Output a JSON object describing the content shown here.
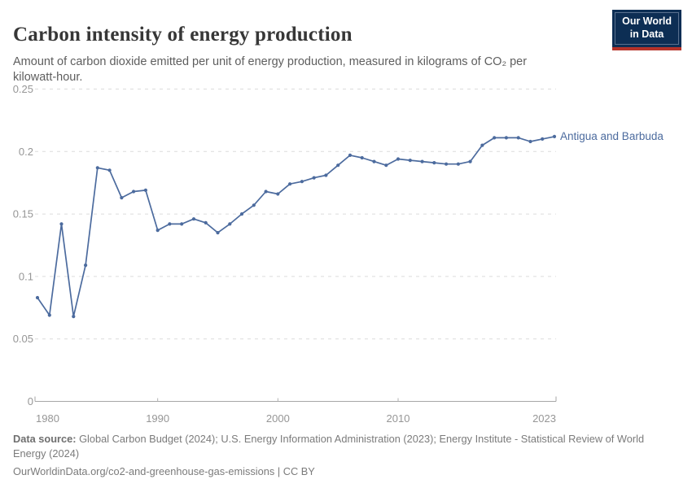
{
  "header": {
    "title": "Carbon intensity of energy production",
    "subtitle": "Amount of carbon dioxide emitted per unit of energy production, measured in kilograms of CO₂ per kilowatt-hour.",
    "logo": {
      "line1": "Our World",
      "line2": "in Data"
    }
  },
  "footer": {
    "source_label": "Data source:",
    "source_text": " Global Carbon Budget (2024); U.S. Energy Information Administration (2023); Energy Institute - Statistical Review of World Energy (2024)",
    "license_line": "OurWorldinData.org/co2-and-greenhouse-gas-emissions | CC BY"
  },
  "chart_data": {
    "type": "line",
    "title": "Carbon intensity of energy production",
    "ylabel": "",
    "xlabel": "",
    "entity_label": "Antigua and Barbuda",
    "line_color": "#4c6b9e",
    "grid": true,
    "legend_position": "end-of-line-label",
    "xlim": [
      1980,
      2023
    ],
    "ylim": [
      0,
      0.25
    ],
    "xticks": [
      1980,
      1990,
      2000,
      2010,
      2023
    ],
    "xtick_labels": [
      "1980",
      "1990",
      "2000",
      "2010",
      "2023"
    ],
    "yticks": [
      0,
      0.05,
      0.1,
      0.15,
      0.2,
      0.25
    ],
    "ytick_labels": [
      "0",
      "0.05",
      "0.1",
      "0.15",
      "0.2",
      "0.25"
    ],
    "x": [
      1980,
      1981,
      1982,
      1983,
      1984,
      1985,
      1986,
      1987,
      1988,
      1989,
      1990,
      1991,
      1992,
      1993,
      1994,
      1995,
      1996,
      1997,
      1998,
      1999,
      2000,
      2001,
      2002,
      2003,
      2004,
      2005,
      2006,
      2007,
      2008,
      2009,
      2010,
      2011,
      2012,
      2013,
      2014,
      2015,
      2016,
      2017,
      2018,
      2019,
      2020,
      2021,
      2022,
      2023
    ],
    "series": [
      {
        "name": "Antigua and Barbuda",
        "values": [
          0.083,
          0.069,
          0.142,
          0.068,
          0.109,
          0.187,
          0.185,
          0.163,
          0.168,
          0.169,
          0.137,
          0.142,
          0.142,
          0.146,
          0.143,
          0.135,
          0.142,
          0.15,
          0.157,
          0.168,
          0.166,
          0.174,
          0.176,
          0.179,
          0.181,
          0.189,
          0.197,
          0.195,
          0.192,
          0.189,
          0.194,
          0.193,
          0.192,
          0.191,
          0.19,
          0.19,
          0.192,
          0.205,
          0.211,
          0.211,
          0.211,
          0.208,
          0.21,
          0.212
        ]
      }
    ]
  }
}
